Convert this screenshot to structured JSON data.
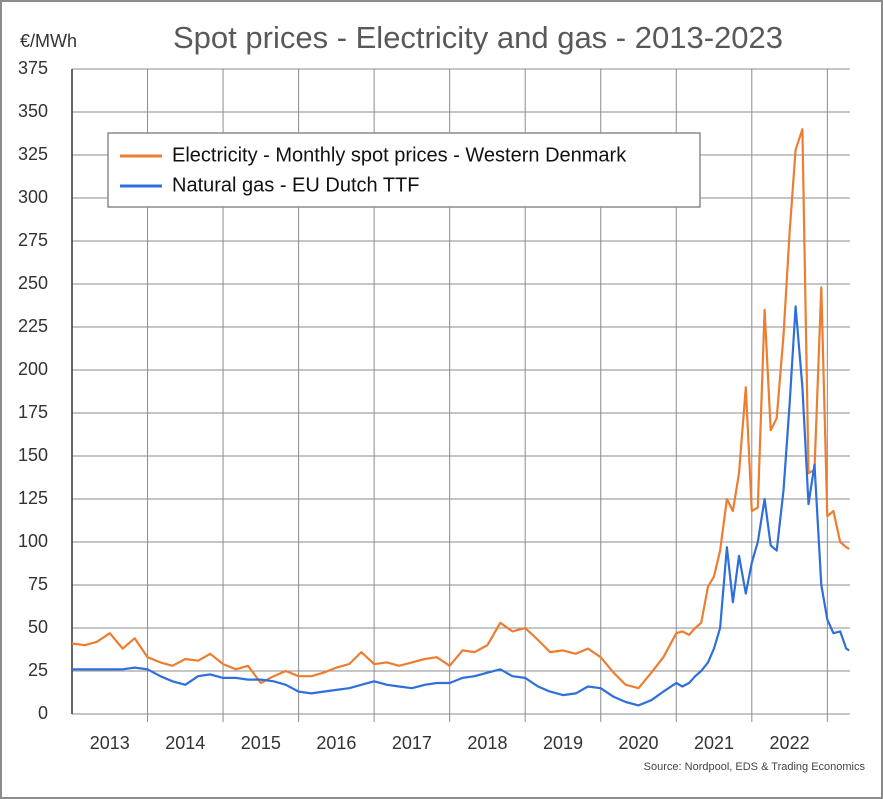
{
  "chart_data": {
    "type": "line",
    "title": "Spot prices - Electricity and gas - 2013-2023",
    "y_label": "€/MWh",
    "source": "Source: Nordpool, EDS & Trading Economics",
    "x": [
      2013,
      2013.17,
      2013.33,
      2013.5,
      2013.67,
      2013.83,
      2014,
      2014.17,
      2014.33,
      2014.5,
      2014.67,
      2014.83,
      2015,
      2015.17,
      2015.33,
      2015.5,
      2015.67,
      2015.83,
      2016,
      2016.17,
      2016.33,
      2016.5,
      2016.67,
      2016.83,
      2017,
      2017.17,
      2017.33,
      2017.5,
      2017.67,
      2017.83,
      2018,
      2018.17,
      2018.33,
      2018.5,
      2018.67,
      2018.83,
      2019,
      2019.17,
      2019.33,
      2019.5,
      2019.67,
      2019.83,
      2020,
      2020.17,
      2020.33,
      2020.5,
      2020.67,
      2020.83,
      2021,
      2021.08,
      2021.17,
      2021.25,
      2021.33,
      2021.42,
      2021.5,
      2021.58,
      2021.67,
      2021.75,
      2021.83,
      2021.92,
      2022,
      2022.08,
      2022.17,
      2022.25,
      2022.33,
      2022.42,
      2022.5,
      2022.58,
      2022.67,
      2022.75,
      2022.83,
      2022.92,
      2023,
      2023.08,
      2023.17,
      2023.25,
      2023.29
    ],
    "series": [
      {
        "name": "Electricity - Monthly spot prices - Western Denmark",
        "color": "#ed7d31",
        "values": [
          41,
          40,
          42,
          47,
          38,
          44,
          33,
          30,
          28,
          32,
          31,
          35,
          29,
          26,
          28,
          18,
          22,
          25,
          22,
          22,
          24,
          27,
          29,
          36,
          29,
          30,
          28,
          30,
          32,
          33,
          28,
          37,
          36,
          40,
          53,
          48,
          50,
          43,
          36,
          37,
          35,
          38,
          33,
          24,
          17,
          15,
          24,
          33,
          47,
          48,
          46,
          50,
          53,
          74,
          80,
          95,
          125,
          118,
          140,
          190,
          118,
          120,
          235,
          165,
          172,
          220,
          280,
          328,
          340,
          140,
          142,
          248,
          115,
          118,
          100,
          97,
          96
        ]
      },
      {
        "name": "Natural gas - EU Dutch TTF",
        "color": "#2e6fdb",
        "values": [
          26,
          26,
          26,
          26,
          26,
          27,
          26,
          22,
          19,
          17,
          22,
          23,
          21,
          21,
          20,
          20,
          19,
          17,
          13,
          12,
          13,
          14,
          15,
          17,
          19,
          17,
          16,
          15,
          17,
          18,
          18,
          21,
          22,
          24,
          26,
          22,
          21,
          16,
          13,
          11,
          12,
          16,
          15,
          10,
          7,
          5,
          8,
          13,
          18,
          16,
          18,
          22,
          25,
          30,
          38,
          50,
          97,
          65,
          92,
          70,
          88,
          100,
          125,
          98,
          95,
          130,
          180,
          237,
          190,
          122,
          145,
          75,
          55,
          47,
          48,
          38,
          37
        ]
      }
    ],
    "xlim": [
      2013,
      2023.3
    ],
    "xgrid": [
      2014,
      2015,
      2016,
      2017,
      2018,
      2019,
      2020,
      2021,
      2022,
      2023
    ],
    "xticks": [
      {
        "value": 2013.5,
        "label": "2013"
      },
      {
        "value": 2014.5,
        "label": "2014"
      },
      {
        "value": 2015.5,
        "label": "2015"
      },
      {
        "value": 2016.5,
        "label": "2016"
      },
      {
        "value": 2017.5,
        "label": "2017"
      },
      {
        "value": 2018.5,
        "label": "2018"
      },
      {
        "value": 2019.5,
        "label": "2019"
      },
      {
        "value": 2020.5,
        "label": "2020"
      },
      {
        "value": 2021.5,
        "label": "2021"
      },
      {
        "value": 2022.5,
        "label": "2022"
      }
    ],
    "ylim": [
      0,
      375
    ],
    "yticks": [
      0,
      25,
      50,
      75,
      100,
      125,
      150,
      175,
      200,
      225,
      250,
      275,
      300,
      325,
      350,
      375
    ],
    "grid": true,
    "legend": "upper left"
  }
}
